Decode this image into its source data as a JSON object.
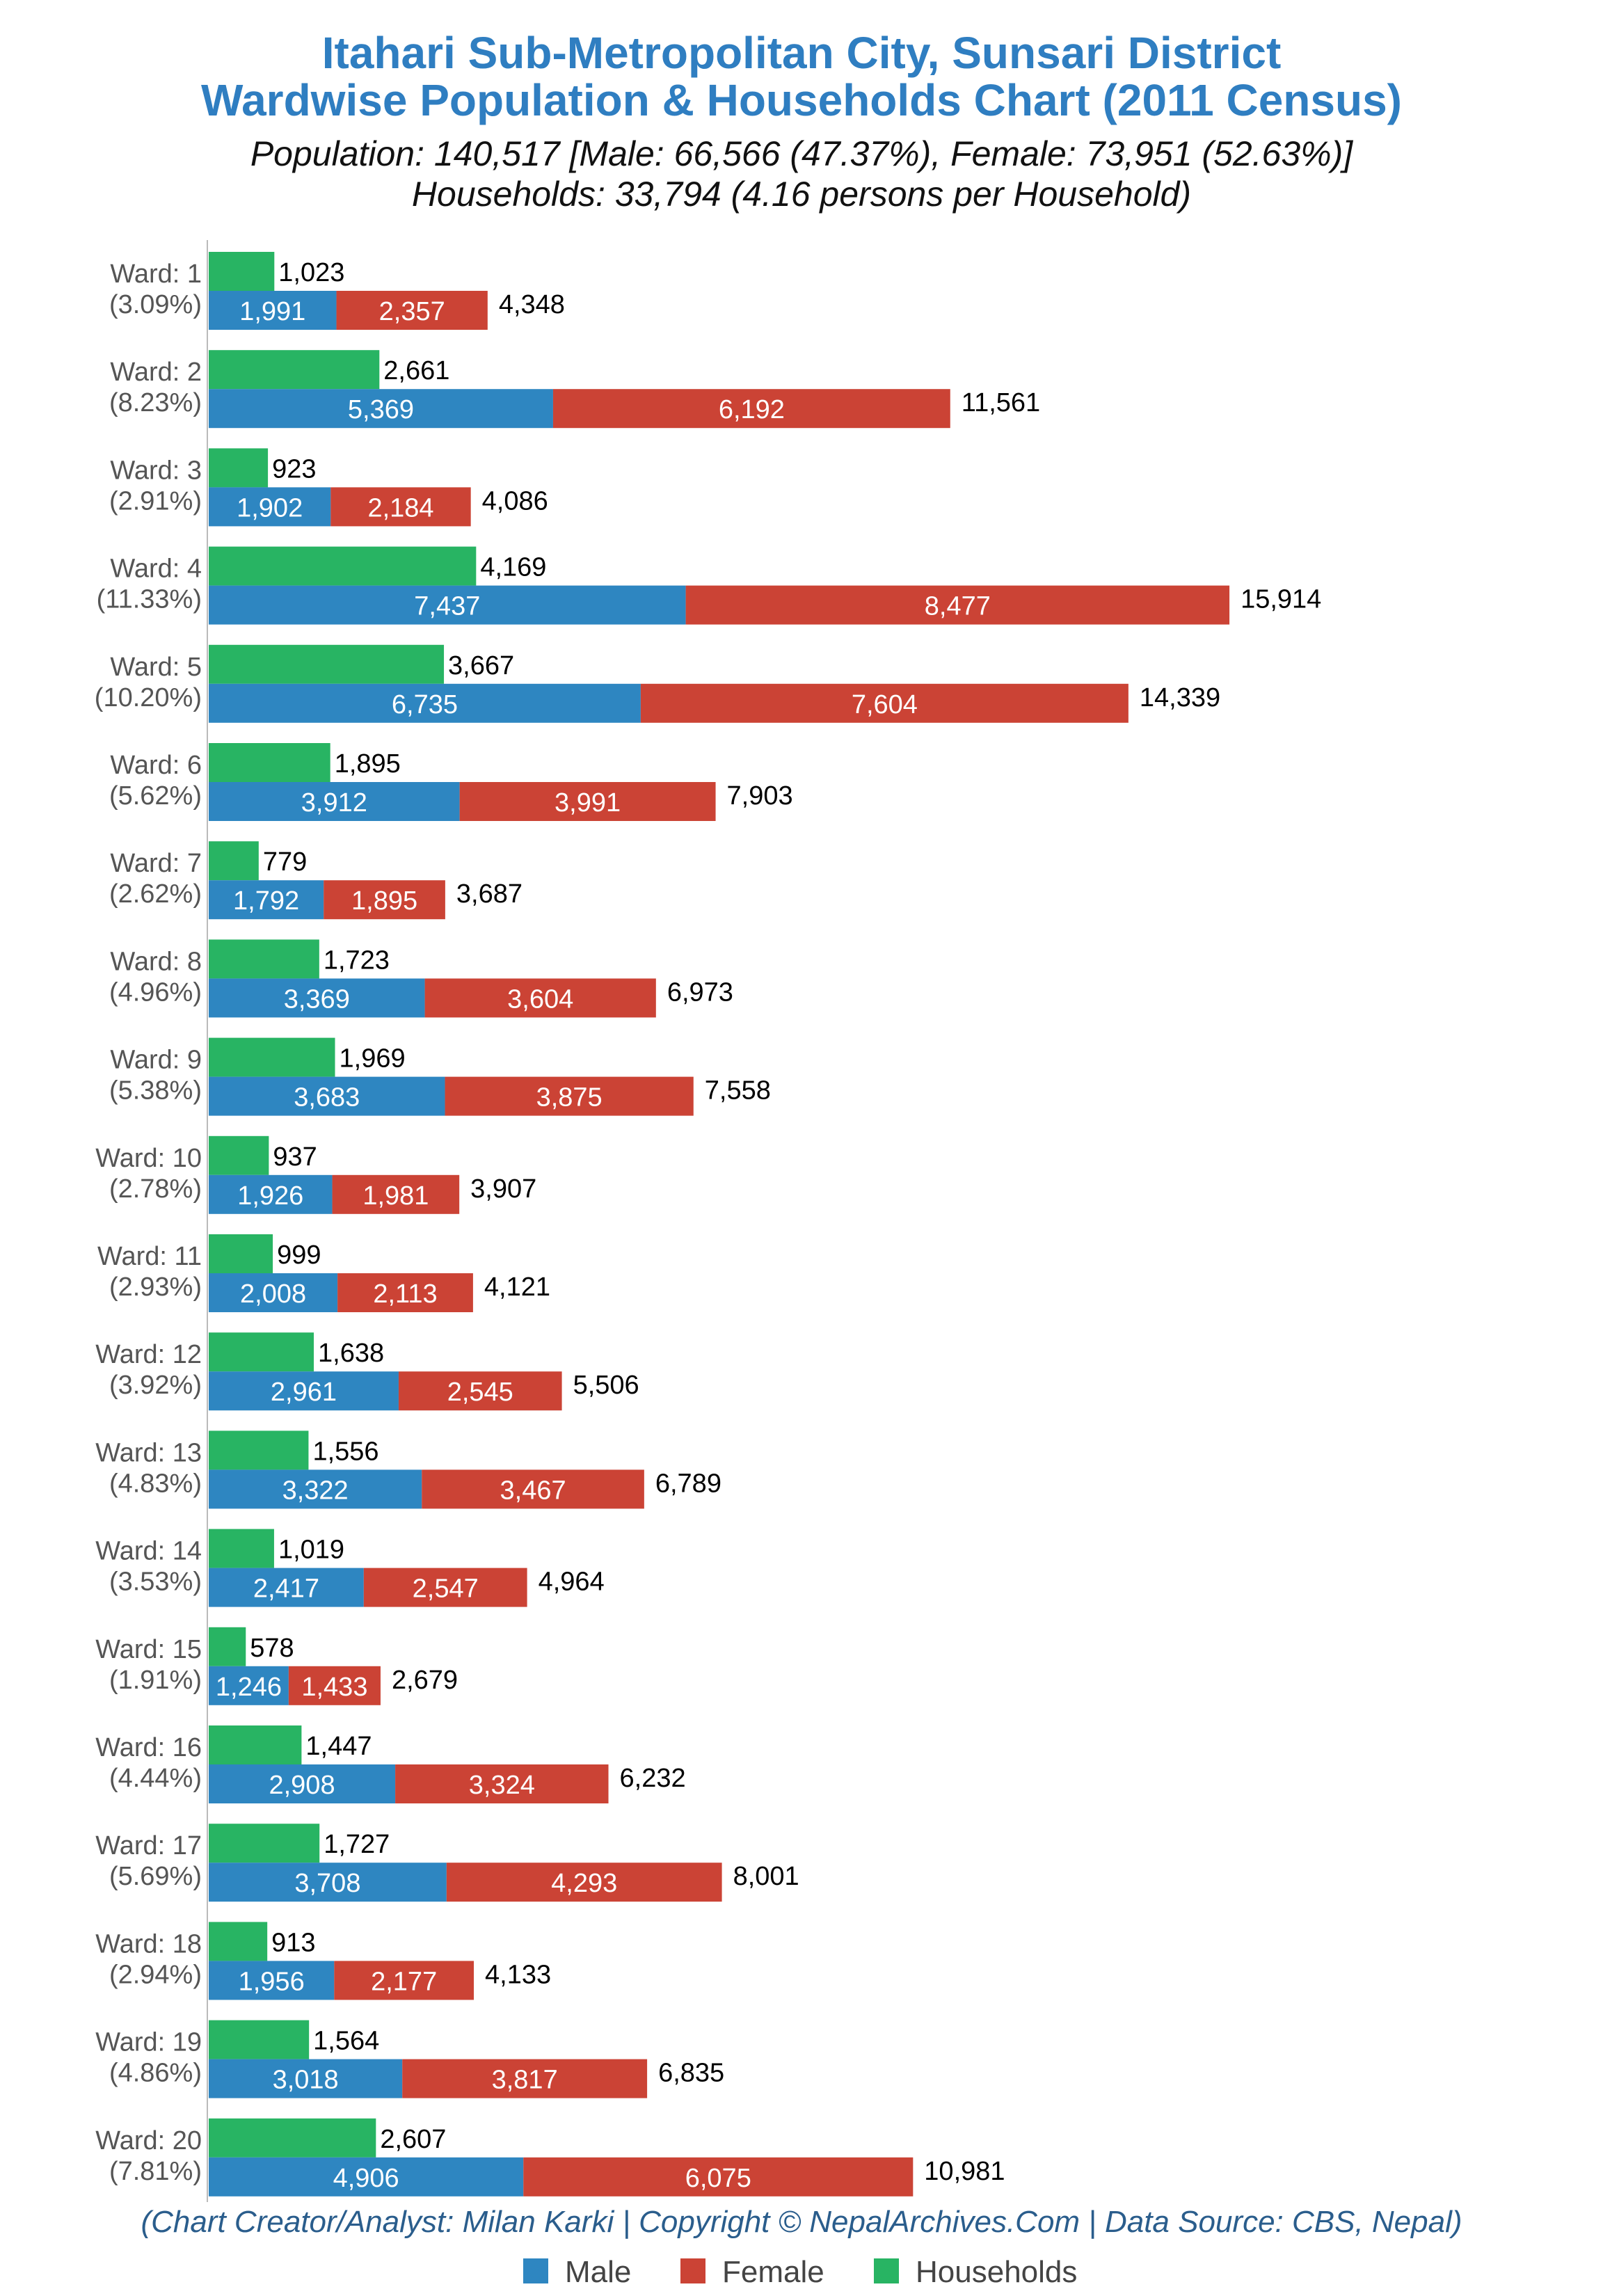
{
  "title_line1": "Itahari Sub-Metropolitan City, Sunsari District",
  "title_line2": "Wardwise Population & Households Chart (2011 Census)",
  "subtitle_line1": "Population: 140,517 [Male: 66,566 (47.37%), Female: 73,951 (52.63%)]",
  "subtitle_line2": "Households: 33,794 (4.16 persons per Household)",
  "credit": "(Chart Creator/Analyst: Milan Karki | Copyright © NepalArchives.Com | Data Source: CBS, Nepal)",
  "legend": {
    "male": "Male",
    "female": "Female",
    "households": "Households"
  },
  "colors": {
    "male": "#2e86c1",
    "female": "#cb4335",
    "households": "#28b463",
    "title": "#2f7ec1"
  },
  "chart_data": {
    "type": "bar",
    "orientation": "horizontal",
    "stacked": [
      "Male",
      "Female"
    ],
    "categories": [
      "Ward: 1",
      "Ward: 2",
      "Ward: 3",
      "Ward: 4",
      "Ward: 5",
      "Ward: 6",
      "Ward: 7",
      "Ward: 8",
      "Ward: 9",
      "Ward: 10",
      "Ward: 11",
      "Ward: 12",
      "Ward: 13",
      "Ward: 14",
      "Ward: 15",
      "Ward: 16",
      "Ward: 17",
      "Ward: 18",
      "Ward: 19",
      "Ward: 20"
    ],
    "percent_labels": [
      "(3.09%)",
      "(8.23%)",
      "(2.91%)",
      "(11.33%)",
      "(10.20%)",
      "(5.62%)",
      "(2.62%)",
      "(4.96%)",
      "(5.38%)",
      "(2.78%)",
      "(2.93%)",
      "(3.92%)",
      "(4.83%)",
      "(3.53%)",
      "(1.91%)",
      "(4.44%)",
      "(5.69%)",
      "(2.94%)",
      "(4.86%)",
      "(7.81%)"
    ],
    "series": [
      {
        "name": "Households",
        "values": [
          1023,
          2661,
          923,
          4169,
          3667,
          1895,
          779,
          1723,
          1969,
          937,
          999,
          1638,
          1556,
          1019,
          578,
          1447,
          1727,
          913,
          1564,
          2607
        ]
      },
      {
        "name": "Male",
        "values": [
          1991,
          5369,
          1902,
          7437,
          6735,
          3912,
          1792,
          3369,
          3683,
          1926,
          2008,
          2961,
          3322,
          2417,
          1246,
          2908,
          3708,
          1956,
          3018,
          4906
        ]
      },
      {
        "name": "Female",
        "values": [
          2357,
          6192,
          2184,
          8477,
          7604,
          3991,
          1895,
          3604,
          3875,
          1981,
          2113,
          2545,
          3467,
          2547,
          1433,
          3324,
          4293,
          2177,
          3817,
          6075
        ]
      }
    ],
    "totals": [
      4348,
      11561,
      4086,
      15914,
      14339,
      7903,
      3687,
      6973,
      7558,
      3907,
      4121,
      5506,
      6789,
      4964,
      2679,
      6232,
      8001,
      4133,
      6835,
      10981
    ],
    "xlim": [
      0,
      16000
    ],
    "grid": false,
    "legend_position": "bottom"
  }
}
